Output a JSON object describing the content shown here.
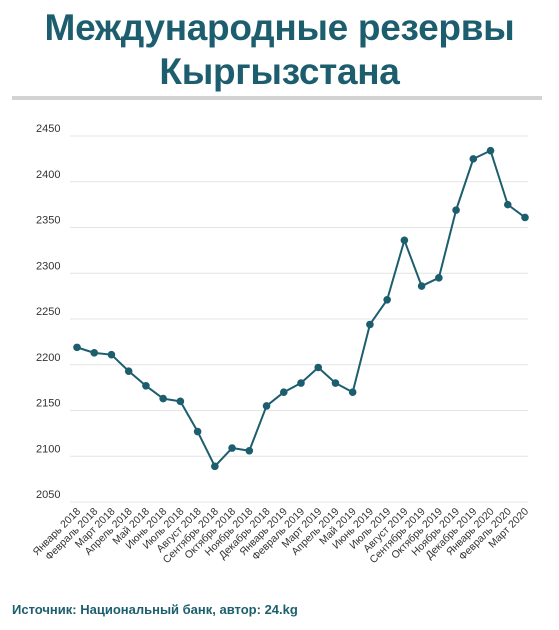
{
  "header": {
    "title_line1": "Международные резервы",
    "title_line2": "Кыргызстана"
  },
  "footer": {
    "source": "Источник: Национальный банк, автор: 24.kg"
  },
  "colors": {
    "title": "#1d5e6e",
    "line": "#1d5e6e",
    "grid": "#e4e4e4",
    "tick_text": "#333333"
  },
  "chart_data": {
    "type": "line",
    "title": "",
    "xlabel": "",
    "ylabel": "",
    "ylim": [
      2050,
      2450
    ],
    "yticks": [
      2050,
      2100,
      2150,
      2200,
      2250,
      2300,
      2350,
      2400,
      2450
    ],
    "grid": true,
    "legend": "none",
    "categories": [
      "Январь 2018",
      "Февраль 2018",
      "Март 2018",
      "Апрель 2018",
      "Май 2018",
      "Июнь 2018",
      "Июль 2018",
      "Август 2018",
      "Сентябрь 2018",
      "Октябрь 2018",
      "Ноябрь 2018",
      "Декабрь 2018",
      "Январь 2019",
      "Февраль 2019",
      "Март 2019",
      "Апрель 2019",
      "Май 2019",
      "Июнь 2019",
      "Июль 2019",
      "Август 2019",
      "Сентябрь 2019",
      "Октябрь 2019",
      "Ноябрь 2019",
      "Декабрь 2019",
      "Январь 2020",
      "Февраль 2020",
      "Март 2020"
    ],
    "values": [
      2219,
      2213,
      2211,
      2193,
      2177,
      2163,
      2160,
      2127,
      2089,
      2109,
      2106,
      2155,
      2170,
      2180,
      2197,
      2180,
      2170,
      2244,
      2271,
      2336,
      2286,
      2295,
      2369,
      2425,
      2434,
      2375,
      2361
    ]
  }
}
